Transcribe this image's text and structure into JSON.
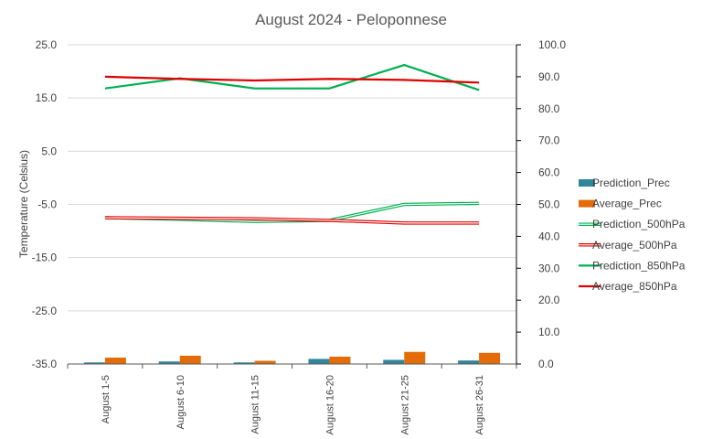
{
  "chart_data": {
    "type": "bar",
    "title": "August 2024 - Peloponnese",
    "ylabel": "Temperature  (Celsius)",
    "ylim": [
      -35,
      25
    ],
    "y_ticks": [
      "25.0",
      "15.0",
      "5.0",
      "-5.0",
      "-15.0",
      "-25.0",
      "-35.0"
    ],
    "y2lim": [
      0,
      100
    ],
    "y2_ticks": [
      "100.0",
      "90.0",
      "80.0",
      "70.0",
      "60.0",
      "50.0",
      "40.0",
      "30.0",
      "20.0",
      "10.0",
      "0.0"
    ],
    "categories": [
      "August 1-5",
      "August 6-10",
      "August 11-15",
      "August 16-20",
      "August 21-25",
      "August 26-31"
    ],
    "grid": true,
    "legend_position": "right",
    "series": [
      {
        "name": "Prediction_Prec",
        "kind": "bar",
        "axis": "right",
        "color": "#31859c",
        "values": [
          0.5,
          0.8,
          0.5,
          1.6,
          1.3,
          1.1
        ]
      },
      {
        "name": "Average_Prec",
        "kind": "bar",
        "axis": "right",
        "color": "#e36c09",
        "values": [
          2.0,
          2.6,
          1.0,
          2.3,
          3.8,
          3.5
        ]
      },
      {
        "name": "Prediction_500hPa",
        "kind": "line",
        "style": "double",
        "axis": "left",
        "color": "#00b050",
        "values": [
          -7.5,
          -7.8,
          -8.2,
          -8.0,
          -5.0,
          -4.8
        ]
      },
      {
        "name": "Average_500hPa",
        "kind": "line",
        "style": "double",
        "axis": "left",
        "color": "#e00000",
        "values": [
          -7.5,
          -7.6,
          -7.7,
          -8.0,
          -8.5,
          -8.5
        ]
      },
      {
        "name": "Prediction_850hPa",
        "kind": "line",
        "axis": "left",
        "color": "#00b050",
        "values": [
          16.8,
          18.7,
          16.8,
          16.8,
          21.2,
          16.5
        ]
      },
      {
        "name": "Average_850hPa",
        "kind": "line",
        "axis": "left",
        "color": "#e00000",
        "values": [
          19.0,
          18.6,
          18.3,
          18.6,
          18.4,
          17.9
        ]
      }
    ]
  }
}
